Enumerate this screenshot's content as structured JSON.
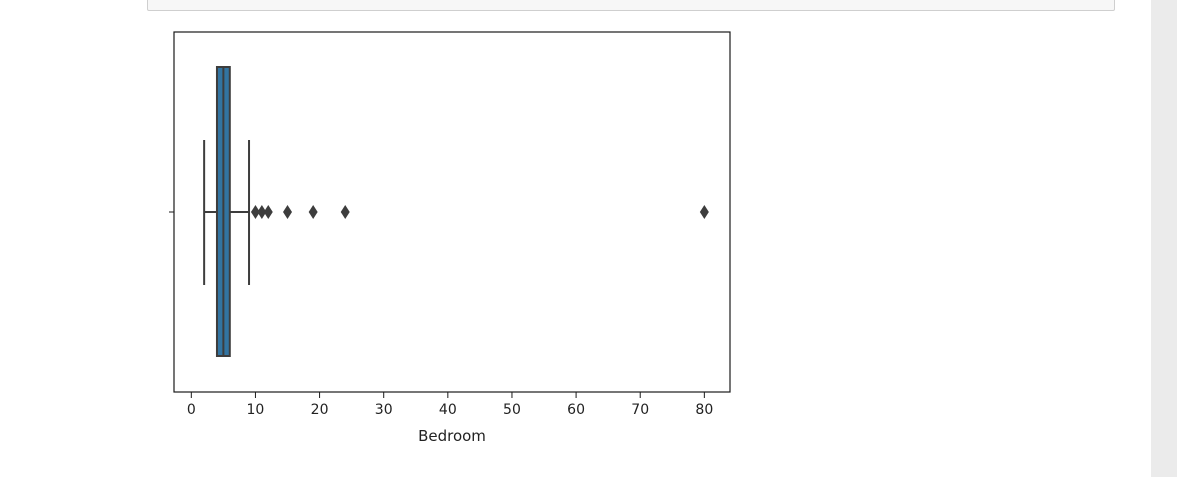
{
  "chart_data": {
    "type": "box",
    "orientation": "horizontal",
    "xlabel": "Bedroom",
    "ylabel": "",
    "xlim": [
      -2.7,
      84
    ],
    "xticks": [
      0,
      10,
      20,
      30,
      40,
      50,
      60,
      70,
      80
    ],
    "grid": false,
    "box": {
      "whisker_low": 2,
      "q1": 4,
      "median": 5,
      "q3": 6,
      "whisker_high": 9,
      "outliers": [
        10,
        11,
        12,
        15,
        19,
        24,
        80
      ]
    },
    "colors": {
      "box_fill": "#3274a1",
      "lines": "#3d3d3d",
      "outlier": "#3d3d3d"
    }
  }
}
